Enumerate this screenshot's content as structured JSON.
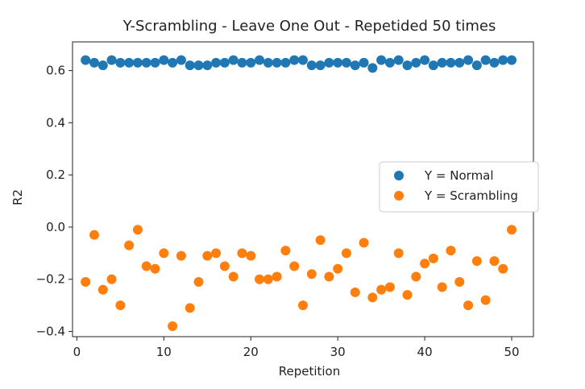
{
  "chart_data": {
    "type": "scatter",
    "title": "Y-Scrambling - Leave One Out - Repetided 50 times",
    "xlabel": "Repetition",
    "ylabel": "R2",
    "xlim": [
      -0.5,
      52.5
    ],
    "ylim": [
      -0.42,
      0.71
    ],
    "xticks": [
      0,
      10,
      20,
      30,
      40,
      50
    ],
    "xtick_labels": [
      "0",
      "10",
      "20",
      "30",
      "40",
      "50"
    ],
    "yticks": [
      -0.4,
      -0.2,
      0.0,
      0.2,
      0.4,
      0.6
    ],
    "ytick_labels": [
      "−0.4",
      "−0.2",
      "0.0",
      "0.2",
      "0.4",
      "0.6"
    ],
    "grid": false,
    "legend_position": "center-right",
    "series": [
      {
        "name": "Y = Normal",
        "color": "#1f77b4",
        "x": [
          1,
          2,
          3,
          4,
          5,
          6,
          7,
          8,
          9,
          10,
          11,
          12,
          13,
          14,
          15,
          16,
          17,
          18,
          19,
          20,
          21,
          22,
          23,
          24,
          25,
          26,
          27,
          28,
          29,
          30,
          31,
          32,
          33,
          34,
          35,
          36,
          37,
          38,
          39,
          40,
          41,
          42,
          43,
          44,
          45,
          46,
          47,
          48,
          49,
          50
        ],
        "y": [
          0.64,
          0.63,
          0.62,
          0.64,
          0.63,
          0.63,
          0.63,
          0.63,
          0.63,
          0.64,
          0.63,
          0.64,
          0.62,
          0.62,
          0.62,
          0.63,
          0.63,
          0.64,
          0.63,
          0.63,
          0.64,
          0.63,
          0.63,
          0.63,
          0.64,
          0.64,
          0.62,
          0.62,
          0.63,
          0.63,
          0.63,
          0.62,
          0.63,
          0.61,
          0.64,
          0.63,
          0.64,
          0.62,
          0.63,
          0.64,
          0.62,
          0.63,
          0.63,
          0.63,
          0.64,
          0.62,
          0.64,
          0.63,
          0.64,
          0.64
        ]
      },
      {
        "name": "Y = Scrambling",
        "color": "#ff7f0e",
        "x": [
          1,
          2,
          3,
          4,
          5,
          6,
          7,
          8,
          9,
          10,
          11,
          12,
          13,
          14,
          15,
          16,
          17,
          18,
          19,
          20,
          21,
          22,
          23,
          24,
          25,
          26,
          27,
          28,
          29,
          30,
          31,
          32,
          33,
          34,
          35,
          36,
          37,
          38,
          39,
          40,
          41,
          42,
          43,
          44,
          45,
          46,
          47,
          48,
          49,
          50
        ],
        "y": [
          -0.21,
          -0.03,
          -0.24,
          -0.2,
          -0.3,
          -0.07,
          -0.01,
          -0.15,
          -0.16,
          -0.1,
          -0.38,
          -0.11,
          -0.31,
          -0.21,
          -0.11,
          -0.1,
          -0.15,
          -0.19,
          -0.1,
          -0.11,
          -0.2,
          -0.2,
          -0.19,
          -0.09,
          -0.15,
          -0.3,
          -0.18,
          -0.05,
          -0.19,
          -0.16,
          -0.1,
          -0.25,
          -0.06,
          -0.27,
          -0.24,
          -0.23,
          -0.1,
          -0.26,
          -0.19,
          -0.14,
          -0.12,
          -0.23,
          -0.09,
          -0.21,
          -0.3,
          -0.13,
          -0.28,
          -0.13,
          -0.16,
          -0.01
        ]
      }
    ]
  }
}
